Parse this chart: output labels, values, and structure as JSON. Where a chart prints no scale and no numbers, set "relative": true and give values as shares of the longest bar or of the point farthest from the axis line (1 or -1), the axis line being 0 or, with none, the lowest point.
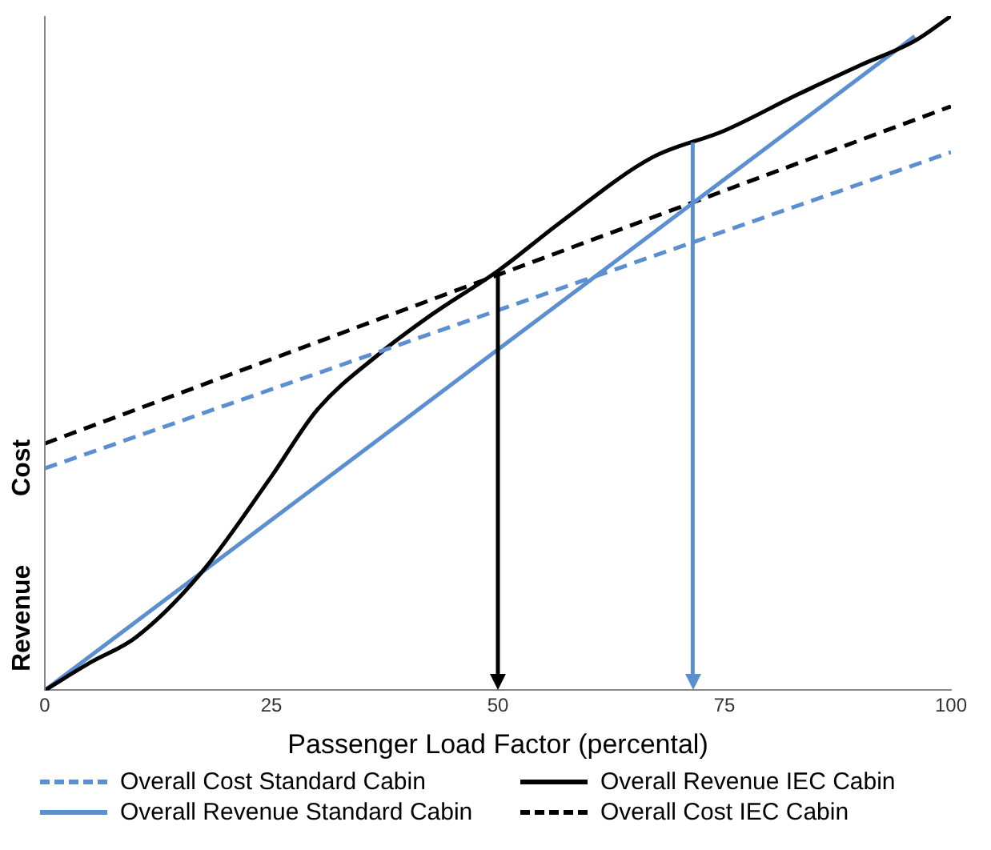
{
  "chart_data": {
    "type": "line",
    "relative": true,
    "xlabel": "Passenger Load Factor (percental)",
    "ylabel": "Revenue",
    "annotations": [
      "Cost"
    ],
    "xlim": [
      0,
      100
    ],
    "xticks": [
      0,
      25,
      50,
      75,
      100
    ],
    "legend": "bottom",
    "marker": "none",
    "series": [
      {
        "name": "Overall Cost Standard Cabin",
        "color": "#5b8fd0",
        "line_style": "dashed",
        "x": [
          0,
          100
        ],
        "values": [
          0.329,
          0.798
        ]
      },
      {
        "name": "Overall Revenue IEC Cabin",
        "color": "#000000",
        "line_style": "solid",
        "x": [
          0,
          5,
          10,
          17,
          25,
          30,
          37,
          43,
          50,
          57,
          67,
          75,
          83,
          90,
          96,
          100
        ],
        "values": [
          0,
          0.041,
          0.078,
          0.17,
          0.317,
          0.415,
          0.5,
          0.56,
          0.622,
          0.695,
          0.79,
          0.83,
          0.883,
          0.927,
          0.963,
          1
        ]
      },
      {
        "name": "Overall Revenue Standard Cabin",
        "color": "#5b8fd0",
        "line_style": "solid",
        "x": [
          0,
          96
        ],
        "values": [
          0,
          0.97
        ]
      },
      {
        "name": "Overall Cost IEC Cabin",
        "color": "#000000",
        "line_style": "dashed",
        "x": [
          0,
          100
        ],
        "values": [
          0.366,
          0.866
        ]
      }
    ],
    "ref_lines": [
      {
        "axis": "x",
        "value": 50,
        "color": "#000000"
      },
      {
        "axis": "x",
        "value": 71.5,
        "color": "#5b8fd0"
      }
    ]
  }
}
